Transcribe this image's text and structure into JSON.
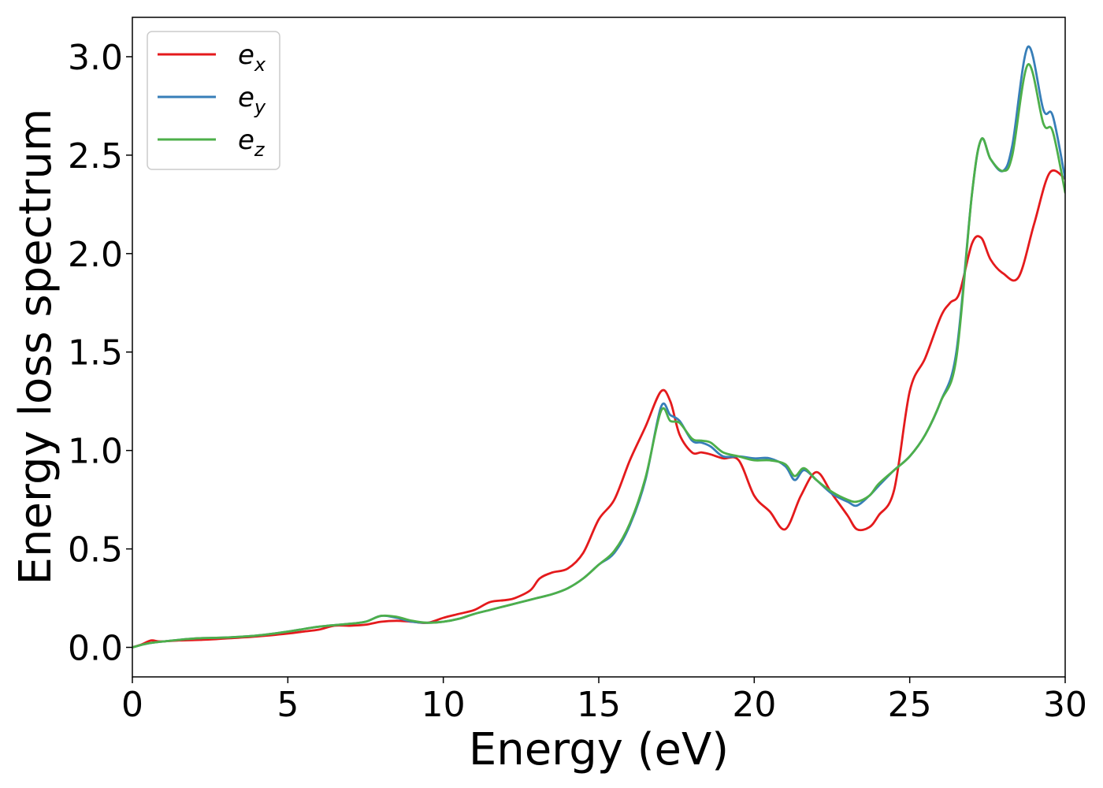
{
  "chart_data": {
    "type": "line",
    "xlabel": "Energy (eV)",
    "ylabel": "Energy loss spectrum",
    "xlim": [
      0,
      30
    ],
    "ylim": [
      -0.15,
      3.2
    ],
    "xticks": [
      "0",
      "5",
      "10",
      "15",
      "20",
      "25",
      "30"
    ],
    "yticks": [
      "0.0",
      "0.5",
      "1.0",
      "1.5",
      "2.0",
      "2.5",
      "3.0"
    ],
    "grid": false,
    "legend_position": "top-left",
    "series": [
      {
        "name": "e",
        "subscript": "x",
        "color": "#e41a1c",
        "x": [
          0,
          0.3,
          0.6,
          0.9,
          1.5,
          2,
          2.5,
          3,
          4,
          5,
          5.5,
          6,
          6.5,
          7,
          7.5,
          8,
          8.5,
          9,
          9.5,
          10,
          10.5,
          11,
          11.5,
          12,
          12.3,
          12.8,
          13.1,
          13.5,
          14,
          14.5,
          15,
          15.5,
          16,
          16.5,
          17,
          17.3,
          17.6,
          18,
          18.3,
          18.6,
          19,
          19.5,
          20,
          20.5,
          21,
          21.5,
          22,
          22.5,
          23,
          23.3,
          23.7,
          24,
          24.5,
          25,
          25.5,
          26,
          26.3,
          26.6,
          27,
          27.3,
          27.6,
          28,
          28.5,
          29,
          29.5,
          30
        ],
        "y": [
          0.0,
          0.015,
          0.035,
          0.03,
          0.035,
          0.037,
          0.04,
          0.045,
          0.055,
          0.07,
          0.08,
          0.09,
          0.11,
          0.11,
          0.115,
          0.13,
          0.135,
          0.13,
          0.125,
          0.15,
          0.17,
          0.19,
          0.23,
          0.24,
          0.25,
          0.29,
          0.35,
          0.38,
          0.4,
          0.48,
          0.65,
          0.75,
          0.95,
          1.12,
          1.3,
          1.25,
          1.08,
          0.99,
          0.99,
          0.98,
          0.96,
          0.95,
          0.77,
          0.69,
          0.6,
          0.77,
          0.89,
          0.78,
          0.67,
          0.6,
          0.61,
          0.67,
          0.8,
          1.3,
          1.47,
          1.68,
          1.75,
          1.8,
          2.05,
          2.08,
          1.97,
          1.9,
          1.88,
          2.15,
          2.41,
          2.38
        ]
      },
      {
        "name": "e",
        "subscript": "y",
        "color": "#377eb8",
        "x": [
          0,
          0.5,
          1,
          2,
          3,
          4,
          5,
          6,
          7,
          7.5,
          8,
          8.5,
          9,
          9.5,
          10,
          10.5,
          11,
          11.5,
          12,
          12.5,
          13,
          13.5,
          14,
          14.5,
          15,
          15.5,
          16,
          16.5,
          17,
          17.3,
          17.6,
          18,
          18.3,
          18.6,
          19,
          19.5,
          20,
          20.5,
          21,
          21.3,
          21.6,
          22,
          22.5,
          23,
          23.3,
          23.7,
          24,
          24.5,
          25,
          25.5,
          26,
          26.5,
          27,
          27.3,
          27.6,
          28,
          28.3,
          28.8,
          29.3,
          29.6,
          30
        ],
        "y": [
          0.0,
          0.02,
          0.03,
          0.045,
          0.05,
          0.06,
          0.08,
          0.105,
          0.12,
          0.13,
          0.16,
          0.15,
          0.13,
          0.125,
          0.13,
          0.145,
          0.17,
          0.19,
          0.21,
          0.23,
          0.25,
          0.27,
          0.3,
          0.35,
          0.42,
          0.48,
          0.62,
          0.85,
          1.22,
          1.18,
          1.15,
          1.05,
          1.04,
          1.02,
          0.97,
          0.97,
          0.96,
          0.96,
          0.92,
          0.85,
          0.9,
          0.85,
          0.78,
          0.74,
          0.72,
          0.77,
          0.82,
          0.9,
          0.97,
          1.08,
          1.25,
          1.5,
          2.3,
          2.58,
          2.48,
          2.42,
          2.55,
          3.05,
          2.73,
          2.7,
          2.38
        ]
      },
      {
        "name": "e",
        "subscript": "z",
        "color": "#4daf4a",
        "x": [
          0,
          0.5,
          1,
          2,
          3,
          4,
          5,
          6,
          7,
          7.5,
          8,
          8.5,
          9,
          9.5,
          10,
          10.5,
          11,
          11.5,
          12,
          12.5,
          13,
          13.5,
          14,
          14.5,
          15,
          15.5,
          16,
          16.5,
          17,
          17.3,
          17.6,
          18,
          18.3,
          18.6,
          19,
          19.5,
          20,
          20.5,
          21,
          21.3,
          21.6,
          22,
          22.5,
          23,
          23.3,
          23.7,
          24,
          24.5,
          25,
          25.5,
          26,
          26.5,
          27,
          27.3,
          27.6,
          28,
          28.3,
          28.8,
          29.3,
          29.6,
          30
        ],
        "y": [
          0.0,
          0.02,
          0.03,
          0.045,
          0.05,
          0.06,
          0.08,
          0.105,
          0.12,
          0.13,
          0.16,
          0.155,
          0.135,
          0.125,
          0.13,
          0.145,
          0.17,
          0.19,
          0.21,
          0.23,
          0.25,
          0.27,
          0.3,
          0.35,
          0.42,
          0.49,
          0.63,
          0.86,
          1.2,
          1.15,
          1.14,
          1.06,
          1.05,
          1.04,
          0.99,
          0.97,
          0.95,
          0.95,
          0.93,
          0.87,
          0.91,
          0.85,
          0.79,
          0.75,
          0.74,
          0.77,
          0.83,
          0.9,
          0.97,
          1.08,
          1.25,
          1.47,
          2.3,
          2.58,
          2.48,
          2.42,
          2.5,
          2.96,
          2.66,
          2.62,
          2.31
        ]
      }
    ]
  }
}
